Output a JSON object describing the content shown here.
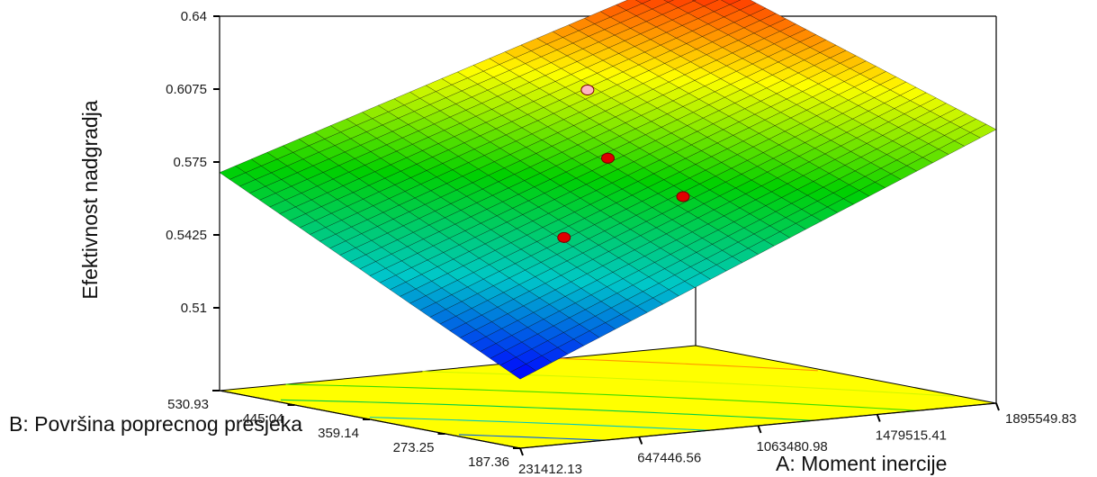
{
  "chart_data": {
    "type": "surface3d",
    "title": "",
    "zlabel": "Efektivnost nadgradja",
    "xlabel": "A: Moment inercije",
    "ylabel": "B: Površina poprecnog presjeka",
    "z_ticks": [
      "0.64",
      "0.6075",
      "0.575",
      "0.5425",
      "0.51"
    ],
    "x_ticks": [
      "231412.13",
      "647446.56",
      "1063480.98",
      "1479515.41",
      "1895549.83"
    ],
    "y_ticks": [
      "530.93",
      "445.04",
      "359.14",
      "273.25",
      "187.36"
    ],
    "zlim": [
      0.51,
      0.64
    ],
    "xlim": [
      231412.13,
      1895549.83
    ],
    "ylim": [
      187.36,
      530.93
    ],
    "surface_corners": [
      {
        "x": 231412.13,
        "y": 187.36,
        "z": 0.5039
      },
      {
        "x": 1895549.83,
        "y": 187.36,
        "z": 0.5951
      },
      {
        "x": 231412.13,
        "y": 530.93,
        "z": 0.5703
      },
      {
        "x": 1895549.83,
        "y": 530.93,
        "z": 0.64
      }
    ],
    "design_points": [
      {
        "x": 1063480.98,
        "y": 359.14,
        "z": 0.5795,
        "color": "#e00000"
      },
      {
        "x": 647446.56,
        "y": 273.25,
        "z": 0.5556,
        "color": "#e00000"
      },
      {
        "x": 1063480.98,
        "y": 273.25,
        "z": 0.5688,
        "color": "#e00000"
      },
      {
        "x": 1255000.0,
        "y": 445.04,
        "z": 0.6012,
        "color": "#ffb6c1"
      }
    ],
    "colormap": [
      "#0000ff",
      "#00c8c8",
      "#00d000",
      "#ffff00",
      "#ff0000"
    ],
    "floor_color": "#ffff00",
    "grid": true
  }
}
